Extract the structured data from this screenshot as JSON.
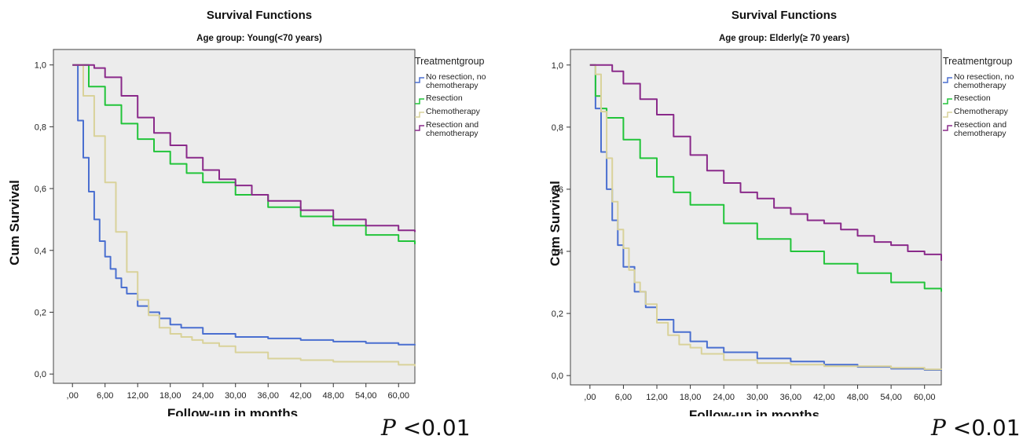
{
  "footer": {
    "p_label": "P",
    "p_value": "<0.01"
  },
  "colors": {
    "no_resection_no_chemo": "#4a6fd0",
    "resection": "#22c43a",
    "chemotherapy": "#d9d29a",
    "resection_and_chemo": "#8a2a8a",
    "plot_bg": "#ececec"
  },
  "chart_data": [
    {
      "type": "line",
      "title": "Survival Functions",
      "subtitle": "Age group: Young(<70 years)",
      "xlabel": "Follow-up in months",
      "ylabel": "Cum Survival",
      "xlim": [
        -3.5,
        63
      ],
      "ylim": [
        -0.03,
        1.05
      ],
      "xticks": [
        0,
        6,
        12,
        18,
        24,
        30,
        36,
        42,
        48,
        54,
        60
      ],
      "xtick_labels": [
        ",00",
        "6,00",
        "12,00",
        "18,00",
        "24,00",
        "30,00",
        "36,00",
        "42,00",
        "48,00",
        "54,00",
        "60,00"
      ],
      "yticks": [
        0,
        0.2,
        0.4,
        0.6,
        0.8,
        1.0
      ],
      "ytick_labels": [
        "0,0",
        "0,2",
        "0,4",
        "0,6",
        "0,8",
        "1,0"
      ],
      "grid": false,
      "legend": {
        "title": "Treatmentgroup",
        "position": "right"
      },
      "series": [
        {
          "name": "No resection, no chemotherapy",
          "color_key": "no_resection_no_chemo",
          "x": [
            0,
            1,
            2,
            3,
            4,
            5,
            6,
            7,
            8,
            9,
            10,
            12,
            14,
            16,
            18,
            20,
            24,
            30,
            36,
            42,
            48,
            54,
            60,
            63
          ],
          "y": [
            1.0,
            0.82,
            0.7,
            0.59,
            0.5,
            0.43,
            0.38,
            0.34,
            0.31,
            0.28,
            0.26,
            0.22,
            0.2,
            0.18,
            0.16,
            0.15,
            0.13,
            0.12,
            0.115,
            0.11,
            0.105,
            0.1,
            0.095,
            0.093
          ]
        },
        {
          "name": "Resection",
          "color_key": "resection",
          "x": [
            0,
            3,
            6,
            9,
            12,
            15,
            18,
            21,
            24,
            30,
            36,
            42,
            48,
            54,
            60,
            63
          ],
          "y": [
            1.0,
            0.93,
            0.87,
            0.81,
            0.76,
            0.72,
            0.68,
            0.65,
            0.62,
            0.58,
            0.54,
            0.51,
            0.48,
            0.45,
            0.43,
            0.42
          ]
        },
        {
          "name": "Chemotherapy",
          "color_key": "chemotherapy",
          "x": [
            0,
            2,
            4,
            6,
            8,
            10,
            12,
            14,
            16,
            18,
            20,
            22,
            24,
            27,
            30,
            36,
            42,
            48,
            54,
            60,
            63
          ],
          "y": [
            1.0,
            0.9,
            0.77,
            0.62,
            0.46,
            0.33,
            0.24,
            0.19,
            0.15,
            0.13,
            0.12,
            0.11,
            0.1,
            0.09,
            0.07,
            0.05,
            0.045,
            0.04,
            0.04,
            0.03,
            0.025
          ]
        },
        {
          "name": "Resection and chemotherapy",
          "color_key": "resection_and_chemo",
          "x": [
            0,
            2,
            4,
            6,
            9,
            12,
            15,
            18,
            21,
            24,
            27,
            30,
            33,
            36,
            42,
            48,
            54,
            60,
            63
          ],
          "y": [
            1.0,
            1.0,
            0.99,
            0.96,
            0.9,
            0.83,
            0.78,
            0.74,
            0.7,
            0.66,
            0.63,
            0.61,
            0.58,
            0.56,
            0.53,
            0.5,
            0.48,
            0.465,
            0.46
          ]
        }
      ]
    },
    {
      "type": "line",
      "title": "Survival Functions",
      "subtitle": "Age group: Elderly(≥ 70 years)",
      "xlabel": "Follow-up in months",
      "ylabel": "Cum Survival",
      "xlim": [
        -3.5,
        63
      ],
      "ylim": [
        -0.03,
        1.05
      ],
      "xticks": [
        0,
        6,
        12,
        18,
        24,
        30,
        36,
        42,
        48,
        54,
        60
      ],
      "xtick_labels": [
        ",00",
        "6,00",
        "12,00",
        "18,00",
        "24,00",
        "30,00",
        "36,00",
        "42,00",
        "48,00",
        "54,00",
        "60,00"
      ],
      "yticks": [
        0,
        0.2,
        0.4,
        0.6,
        0.8,
        1.0
      ],
      "ytick_labels": [
        "0,0",
        "0,2",
        "0,4",
        "0,6",
        "0,8",
        "1,0"
      ],
      "grid": false,
      "legend": {
        "title": "Treatmentgroup",
        "position": "right"
      },
      "series": [
        {
          "name": "No resection, no chemotherapy",
          "color_key": "no_resection_no_chemo",
          "x": [
            0,
            1,
            2,
            3,
            4,
            5,
            6,
            8,
            10,
            12,
            15,
            18,
            21,
            24,
            30,
            36,
            42,
            48,
            54,
            60,
            63
          ],
          "y": [
            1.0,
            0.86,
            0.72,
            0.6,
            0.5,
            0.42,
            0.35,
            0.27,
            0.22,
            0.18,
            0.14,
            0.11,
            0.09,
            0.075,
            0.055,
            0.045,
            0.035,
            0.028,
            0.022,
            0.018,
            0.016
          ]
        },
        {
          "name": "Resection",
          "color_key": "resection",
          "x": [
            0,
            1,
            2,
            3,
            6,
            9,
            12,
            15,
            18,
            24,
            30,
            36,
            42,
            48,
            54,
            60,
            63
          ],
          "y": [
            1.0,
            0.9,
            0.86,
            0.83,
            0.76,
            0.7,
            0.64,
            0.59,
            0.55,
            0.49,
            0.44,
            0.4,
            0.36,
            0.33,
            0.3,
            0.28,
            0.27
          ]
        },
        {
          "name": "Chemotherapy",
          "color_key": "chemotherapy",
          "x": [
            0,
            1,
            2,
            3,
            4,
            5,
            6,
            7,
            8,
            9,
            10,
            12,
            14,
            16,
            18,
            20,
            24,
            30,
            36,
            42,
            48,
            54,
            60,
            63
          ],
          "y": [
            1.0,
            0.97,
            0.85,
            0.7,
            0.56,
            0.47,
            0.41,
            0.34,
            0.3,
            0.27,
            0.23,
            0.17,
            0.13,
            0.1,
            0.09,
            0.07,
            0.05,
            0.04,
            0.035,
            0.03,
            0.03,
            0.025,
            0.02,
            0.018
          ]
        },
        {
          "name": "Resection and chemotherapy",
          "color_key": "resection_and_chemo",
          "x": [
            0,
            2,
            4,
            6,
            9,
            12,
            15,
            18,
            21,
            24,
            27,
            30,
            33,
            36,
            39,
            42,
            45,
            48,
            51,
            54,
            57,
            60,
            63
          ],
          "y": [
            1.0,
            1.0,
            0.98,
            0.94,
            0.89,
            0.84,
            0.77,
            0.71,
            0.66,
            0.62,
            0.59,
            0.57,
            0.54,
            0.52,
            0.5,
            0.49,
            0.47,
            0.45,
            0.43,
            0.42,
            0.4,
            0.39,
            0.37
          ]
        }
      ]
    }
  ]
}
